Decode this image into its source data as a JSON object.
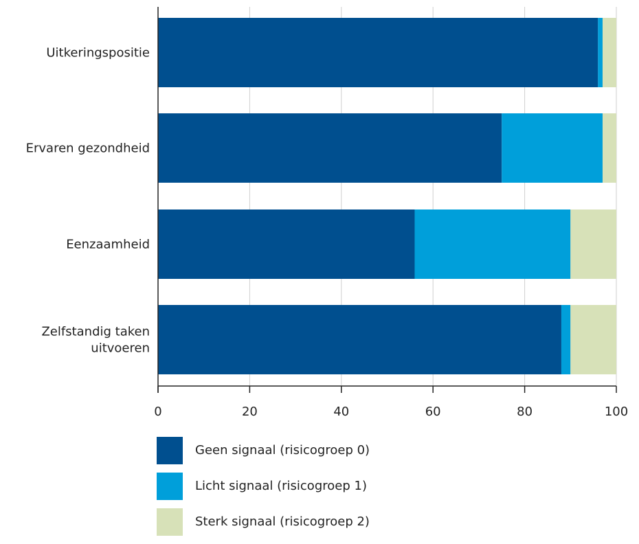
{
  "chart_data": {
    "type": "bar",
    "orientation": "horizontal",
    "stacked": true,
    "categories": [
      "Uitkeringspositie",
      "Ervaren gezondheid",
      "Eenzaamheid",
      "Zelfstandig taken uitvoeren"
    ],
    "series": [
      {
        "name": "Geen signaal (risicogroep 0)",
        "color": "#004f8f",
        "values": [
          96,
          75,
          56,
          88
        ]
      },
      {
        "name": "Licht signaal (risicogroep 1)",
        "color": "#009fda",
        "values": [
          1,
          22,
          34,
          2
        ]
      },
      {
        "name": "Sterk signaal (risicogroep 2)",
        "color": "#d7e1b8",
        "values": [
          3,
          3,
          10,
          10
        ]
      }
    ],
    "xlim": [
      0,
      100
    ],
    "xticks": [
      0,
      20,
      40,
      60,
      80,
      100
    ],
    "grid": true,
    "legend": "bottom"
  }
}
